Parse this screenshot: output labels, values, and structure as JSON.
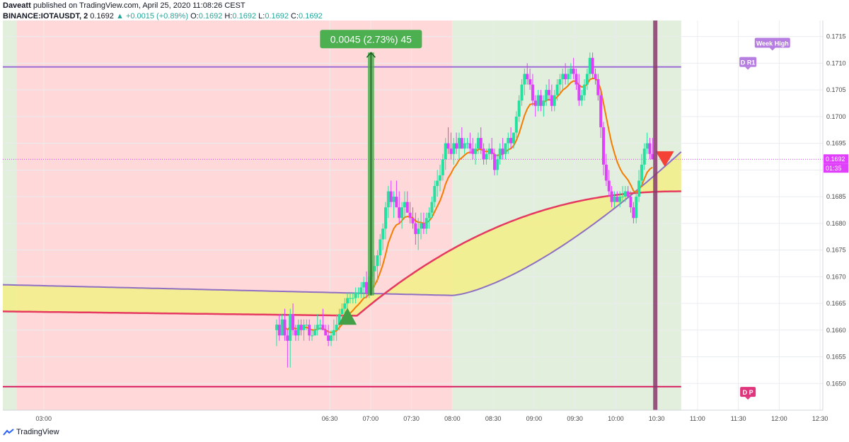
{
  "header": {
    "author": "Daveatt",
    "published_text": "published on TradingView.com, April 25, 2020 11:08:26 CEST",
    "symbol": "BINANCE:IOTAUSDT, 2",
    "last": "0.1692",
    "change": "+0.0015 (+0.89%)",
    "o_label": "O:",
    "o": "0.1692",
    "h_label": "H:",
    "h": "0.1692",
    "l_label": "L:",
    "l": "0.1692",
    "c_label": "C:",
    "c": "0.1692"
  },
  "footer": {
    "brand": "TradingView"
  },
  "colors": {
    "bull": "#26e0a0",
    "bear": "#e040fb",
    "bg_red": "#ffd9d9",
    "bg_green": "#e2efdc",
    "orange": "#f57c00",
    "red_ma": "#e53960",
    "purple_ma": "#8e6fc2",
    "fill_yellow": "#f3ee8c",
    "long_box": "#4caf50",
    "vline": "#883a6b",
    "price_label": "#e040fb"
  },
  "chart_data": {
    "type": "candlestick",
    "y_range": [
      0.1645,
      0.1718
    ],
    "y_ticks": [
      "0.1650",
      "0.1655",
      "0.1660",
      "0.1665",
      "0.1670",
      "0.1675",
      "0.1680",
      "0.1685",
      "0.1690",
      "0.1695",
      "0.1700",
      "0.1705",
      "0.1710",
      "0.1715"
    ],
    "x_range_minutes": [
      150,
      752
    ],
    "x_ticks": [
      {
        "label": "03:00",
        "t": 180
      },
      {
        "label": "06:30",
        "t": 390
      },
      {
        "label": "07:00",
        "t": 420
      },
      {
        "label": "07:30",
        "t": 450
      },
      {
        "label": "08:00",
        "t": 480
      },
      {
        "label": "08:30",
        "t": 510
      },
      {
        "label": "09:00",
        "t": 540
      },
      {
        "label": "09:30",
        "t": 570
      },
      {
        "label": "10:00",
        "t": 600
      },
      {
        "label": "10:30",
        "t": 630
      },
      {
        "label": "11:00",
        "t": 660
      },
      {
        "label": "11:30",
        "t": 690
      },
      {
        "label": "12:00",
        "t": 720
      },
      {
        "label": "12:30",
        "t": 750
      }
    ],
    "current_price": "0.1692",
    "countdown": "01:35",
    "measure_label": "0.0045 (2.73%) 45",
    "pivot_labels": [
      "Week High",
      "D R1",
      "D P"
    ],
    "levels": {
      "purple_high": 0.17093,
      "pink_low": 0.16494
    },
    "candles": [
      {
        "t": 351,
        "o": 0.166,
        "h": 0.1662,
        "l": 0.1657,
        "c": 0.1661
      },
      {
        "t": 353,
        "o": 0.1661,
        "h": 0.1663,
        "l": 0.1658,
        "c": 0.1659
      },
      {
        "t": 355,
        "o": 0.1659,
        "h": 0.1663,
        "l": 0.1659,
        "c": 0.1662
      },
      {
        "t": 357,
        "o": 0.1662,
        "h": 0.1664,
        "l": 0.1658,
        "c": 0.1659
      },
      {
        "t": 359,
        "o": 0.1659,
        "h": 0.166,
        "l": 0.1653,
        "c": 0.1658
      },
      {
        "t": 361,
        "o": 0.1658,
        "h": 0.1664,
        "l": 0.1653,
        "c": 0.1663
      },
      {
        "t": 363,
        "o": 0.1663,
        "h": 0.1665,
        "l": 0.1659,
        "c": 0.166
      },
      {
        "t": 365,
        "o": 0.166,
        "h": 0.1661,
        "l": 0.1658,
        "c": 0.1659
      },
      {
        "t": 367,
        "o": 0.1659,
        "h": 0.1662,
        "l": 0.1658,
        "c": 0.1661
      },
      {
        "t": 369,
        "o": 0.1661,
        "h": 0.1662,
        "l": 0.1659,
        "c": 0.166
      },
      {
        "t": 371,
        "o": 0.166,
        "h": 0.1662,
        "l": 0.1658,
        "c": 0.1661
      },
      {
        "t": 373,
        "o": 0.1661,
        "h": 0.1662,
        "l": 0.166,
        "c": 0.1661
      },
      {
        "t": 375,
        "o": 0.1661,
        "h": 0.1662,
        "l": 0.1658,
        "c": 0.1659
      },
      {
        "t": 377,
        "o": 0.1659,
        "h": 0.166,
        "l": 0.1658,
        "c": 0.1659
      },
      {
        "t": 379,
        "o": 0.1659,
        "h": 0.1661,
        "l": 0.1659,
        "c": 0.166
      },
      {
        "t": 381,
        "o": 0.166,
        "h": 0.1663,
        "l": 0.1659,
        "c": 0.1661
      },
      {
        "t": 383,
        "o": 0.1661,
        "h": 0.1662,
        "l": 0.166,
        "c": 0.1661
      },
      {
        "t": 385,
        "o": 0.1661,
        "h": 0.1664,
        "l": 0.166,
        "c": 0.166
      },
      {
        "t": 387,
        "o": 0.166,
        "h": 0.1661,
        "l": 0.1659,
        "c": 0.1659
      },
      {
        "t": 389,
        "o": 0.1659,
        "h": 0.1661,
        "l": 0.1657,
        "c": 0.1658
      },
      {
        "t": 391,
        "o": 0.1658,
        "h": 0.166,
        "l": 0.1657,
        "c": 0.1659
      },
      {
        "t": 393,
        "o": 0.1659,
        "h": 0.1662,
        "l": 0.1658,
        "c": 0.166
      },
      {
        "t": 395,
        "o": 0.166,
        "h": 0.1663,
        "l": 0.1658,
        "c": 0.1661
      },
      {
        "t": 397,
        "o": 0.1661,
        "h": 0.1664,
        "l": 0.166,
        "c": 0.1663
      },
      {
        "t": 399,
        "o": 0.1663,
        "h": 0.1665,
        "l": 0.1662,
        "c": 0.1664
      },
      {
        "t": 401,
        "o": 0.1664,
        "h": 0.1666,
        "l": 0.1663,
        "c": 0.1665
      },
      {
        "t": 403,
        "o": 0.1665,
        "h": 0.1667,
        "l": 0.1664,
        "c": 0.1666
      },
      {
        "t": 405,
        "o": 0.1666,
        "h": 0.1667,
        "l": 0.1665,
        "c": 0.1666
      },
      {
        "t": 407,
        "o": 0.1666,
        "h": 0.1667,
        "l": 0.1665,
        "c": 0.1666
      },
      {
        "t": 409,
        "o": 0.1666,
        "h": 0.1668,
        "l": 0.1665,
        "c": 0.1667
      },
      {
        "t": 411,
        "o": 0.1667,
        "h": 0.1668,
        "l": 0.1666,
        "c": 0.1667
      },
      {
        "t": 413,
        "o": 0.1667,
        "h": 0.1669,
        "l": 0.1666,
        "c": 0.1668
      },
      {
        "t": 415,
        "o": 0.1668,
        "h": 0.167,
        "l": 0.1666,
        "c": 0.1669
      },
      {
        "t": 417,
        "o": 0.1669,
        "h": 0.1671,
        "l": 0.1666,
        "c": 0.1667
      },
      {
        "t": 419,
        "o": 0.1667,
        "h": 0.1671,
        "l": 0.1666,
        "c": 0.167
      },
      {
        "t": 421,
        "o": 0.167,
        "h": 0.1673,
        "l": 0.1667,
        "c": 0.1671
      },
      {
        "t": 423,
        "o": 0.1671,
        "h": 0.1674,
        "l": 0.1668,
        "c": 0.1672
      },
      {
        "t": 425,
        "o": 0.1672,
        "h": 0.1675,
        "l": 0.1669,
        "c": 0.1674
      },
      {
        "t": 427,
        "o": 0.1674,
        "h": 0.1678,
        "l": 0.1672,
        "c": 0.1677
      },
      {
        "t": 429,
        "o": 0.1677,
        "h": 0.168,
        "l": 0.1675,
        "c": 0.1679
      },
      {
        "t": 431,
        "o": 0.1679,
        "h": 0.1684,
        "l": 0.1677,
        "c": 0.1683
      },
      {
        "t": 433,
        "o": 0.1683,
        "h": 0.1687,
        "l": 0.1681,
        "c": 0.1686
      },
      {
        "t": 435,
        "o": 0.1686,
        "h": 0.1688,
        "l": 0.1683,
        "c": 0.1684
      },
      {
        "t": 437,
        "o": 0.1684,
        "h": 0.1686,
        "l": 0.1681,
        "c": 0.1685
      },
      {
        "t": 439,
        "o": 0.1685,
        "h": 0.1688,
        "l": 0.1683,
        "c": 0.1683
      },
      {
        "t": 441,
        "o": 0.1683,
        "h": 0.1686,
        "l": 0.168,
        "c": 0.1681
      },
      {
        "t": 443,
        "o": 0.1681,
        "h": 0.1684,
        "l": 0.1679,
        "c": 0.1683
      },
      {
        "t": 445,
        "o": 0.1683,
        "h": 0.1686,
        "l": 0.1681,
        "c": 0.1684
      },
      {
        "t": 447,
        "o": 0.1684,
        "h": 0.1686,
        "l": 0.1682,
        "c": 0.1682
      },
      {
        "t": 449,
        "o": 0.1682,
        "h": 0.1684,
        "l": 0.168,
        "c": 0.1681
      },
      {
        "t": 451,
        "o": 0.1681,
        "h": 0.1683,
        "l": 0.1679,
        "c": 0.168
      },
      {
        "t": 453,
        "o": 0.168,
        "h": 0.1682,
        "l": 0.1676,
        "c": 0.1678
      },
      {
        "t": 455,
        "o": 0.1678,
        "h": 0.1681,
        "l": 0.1675,
        "c": 0.1679
      },
      {
        "t": 457,
        "o": 0.1679,
        "h": 0.1682,
        "l": 0.1677,
        "c": 0.168
      },
      {
        "t": 459,
        "o": 0.168,
        "h": 0.1682,
        "l": 0.1678,
        "c": 0.1679
      },
      {
        "t": 461,
        "o": 0.1679,
        "h": 0.1682,
        "l": 0.1678,
        "c": 0.1681
      },
      {
        "t": 463,
        "o": 0.1681,
        "h": 0.1683,
        "l": 0.1679,
        "c": 0.1682
      },
      {
        "t": 465,
        "o": 0.1682,
        "h": 0.1685,
        "l": 0.1681,
        "c": 0.1684
      },
      {
        "t": 467,
        "o": 0.1684,
        "h": 0.1688,
        "l": 0.1683,
        "c": 0.1687
      },
      {
        "t": 469,
        "o": 0.1687,
        "h": 0.169,
        "l": 0.1685,
        "c": 0.1688
      },
      {
        "t": 471,
        "o": 0.1688,
        "h": 0.1691,
        "l": 0.1686,
        "c": 0.1689
      },
      {
        "t": 473,
        "o": 0.1689,
        "h": 0.1693,
        "l": 0.1688,
        "c": 0.1692
      },
      {
        "t": 475,
        "o": 0.1692,
        "h": 0.1696,
        "l": 0.169,
        "c": 0.1695
      },
      {
        "t": 477,
        "o": 0.1695,
        "h": 0.1698,
        "l": 0.1693,
        "c": 0.1694
      },
      {
        "t": 479,
        "o": 0.1694,
        "h": 0.1697,
        "l": 0.1692,
        "c": 0.1693
      },
      {
        "t": 481,
        "o": 0.1693,
        "h": 0.1696,
        "l": 0.1691,
        "c": 0.1695
      },
      {
        "t": 483,
        "o": 0.1695,
        "h": 0.1697,
        "l": 0.1693,
        "c": 0.1694
      },
      {
        "t": 485,
        "o": 0.1694,
        "h": 0.1697,
        "l": 0.1692,
        "c": 0.1696
      },
      {
        "t": 487,
        "o": 0.1696,
        "h": 0.1698,
        "l": 0.1694,
        "c": 0.1694
      },
      {
        "t": 489,
        "o": 0.1694,
        "h": 0.1696,
        "l": 0.1693,
        "c": 0.1695
      },
      {
        "t": 491,
        "o": 0.1695,
        "h": 0.1696,
        "l": 0.1694,
        "c": 0.1695
      },
      {
        "t": 493,
        "o": 0.1695,
        "h": 0.1697,
        "l": 0.1693,
        "c": 0.1694
      },
      {
        "t": 495,
        "o": 0.1694,
        "h": 0.1696,
        "l": 0.1692,
        "c": 0.1693
      },
      {
        "t": 497,
        "o": 0.1693,
        "h": 0.1695,
        "l": 0.1691,
        "c": 0.1694
      },
      {
        "t": 499,
        "o": 0.1694,
        "h": 0.1697,
        "l": 0.1693,
        "c": 0.1696
      },
      {
        "t": 501,
        "o": 0.1696,
        "h": 0.1698,
        "l": 0.1693,
        "c": 0.1694
      },
      {
        "t": 503,
        "o": 0.1694,
        "h": 0.1695,
        "l": 0.1691,
        "c": 0.1692
      },
      {
        "t": 505,
        "o": 0.1692,
        "h": 0.1694,
        "l": 0.1691,
        "c": 0.1693
      },
      {
        "t": 507,
        "o": 0.1693,
        "h": 0.1695,
        "l": 0.1692,
        "c": 0.1694
      },
      {
        "t": 509,
        "o": 0.1694,
        "h": 0.1696,
        "l": 0.1692,
        "c": 0.1693
      },
      {
        "t": 511,
        "o": 0.1693,
        "h": 0.1694,
        "l": 0.1689,
        "c": 0.169
      },
      {
        "t": 513,
        "o": 0.169,
        "h": 0.1693,
        "l": 0.1689,
        "c": 0.1692
      },
      {
        "t": 515,
        "o": 0.1692,
        "h": 0.1695,
        "l": 0.1691,
        "c": 0.1694
      },
      {
        "t": 517,
        "o": 0.1694,
        "h": 0.1696,
        "l": 0.1692,
        "c": 0.1693
      },
      {
        "t": 519,
        "o": 0.1693,
        "h": 0.1695,
        "l": 0.1692,
        "c": 0.1695
      },
      {
        "t": 521,
        "o": 0.1695,
        "h": 0.1697,
        "l": 0.1693,
        "c": 0.1696
      },
      {
        "t": 523,
        "o": 0.1696,
        "h": 0.1698,
        "l": 0.1694,
        "c": 0.1695
      },
      {
        "t": 525,
        "o": 0.1695,
        "h": 0.1697,
        "l": 0.1694,
        "c": 0.1697
      },
      {
        "t": 527,
        "o": 0.1697,
        "h": 0.1701,
        "l": 0.1696,
        "c": 0.17
      },
      {
        "t": 529,
        "o": 0.17,
        "h": 0.1704,
        "l": 0.1699,
        "c": 0.1703
      },
      {
        "t": 531,
        "o": 0.1703,
        "h": 0.1707,
        "l": 0.1702,
        "c": 0.1706
      },
      {
        "t": 533,
        "o": 0.1706,
        "h": 0.1709,
        "l": 0.1704,
        "c": 0.1708
      },
      {
        "t": 535,
        "o": 0.1708,
        "h": 0.171,
        "l": 0.1706,
        "c": 0.1707
      },
      {
        "t": 537,
        "o": 0.1707,
        "h": 0.1709,
        "l": 0.1705,
        "c": 0.1706
      },
      {
        "t": 539,
        "o": 0.1706,
        "h": 0.1708,
        "l": 0.1702,
        "c": 0.1703
      },
      {
        "t": 541,
        "o": 0.1703,
        "h": 0.1704,
        "l": 0.17,
        "c": 0.1702
      },
      {
        "t": 543,
        "o": 0.1702,
        "h": 0.1705,
        "l": 0.1701,
        "c": 0.1704
      },
      {
        "t": 545,
        "o": 0.1704,
        "h": 0.1705,
        "l": 0.1701,
        "c": 0.1702
      },
      {
        "t": 547,
        "o": 0.1702,
        "h": 0.1704,
        "l": 0.17,
        "c": 0.1703
      },
      {
        "t": 549,
        "o": 0.1703,
        "h": 0.1706,
        "l": 0.1702,
        "c": 0.1705
      },
      {
        "t": 551,
        "o": 0.1705,
        "h": 0.1707,
        "l": 0.1703,
        "c": 0.1704
      },
      {
        "t": 553,
        "o": 0.1704,
        "h": 0.1706,
        "l": 0.1701,
        "c": 0.1702
      },
      {
        "t": 555,
        "o": 0.1702,
        "h": 0.1705,
        "l": 0.1701,
        "c": 0.1704
      },
      {
        "t": 557,
        "o": 0.1704,
        "h": 0.1707,
        "l": 0.1703,
        "c": 0.1706
      },
      {
        "t": 559,
        "o": 0.1706,
        "h": 0.1708,
        "l": 0.1704,
        "c": 0.1707
      },
      {
        "t": 561,
        "o": 0.1707,
        "h": 0.1709,
        "l": 0.1705,
        "c": 0.1708
      },
      {
        "t": 563,
        "o": 0.1708,
        "h": 0.171,
        "l": 0.1706,
        "c": 0.1707
      },
      {
        "t": 565,
        "o": 0.1707,
        "h": 0.1709,
        "l": 0.1706,
        "c": 0.1708
      },
      {
        "t": 567,
        "o": 0.1708,
        "h": 0.171,
        "l": 0.1707,
        "c": 0.1709
      },
      {
        "t": 569,
        "o": 0.1709,
        "h": 0.1711,
        "l": 0.1707,
        "c": 0.1708
      },
      {
        "t": 571,
        "o": 0.1708,
        "h": 0.1709,
        "l": 0.1705,
        "c": 0.1706
      },
      {
        "t": 573,
        "o": 0.1706,
        "h": 0.1708,
        "l": 0.1702,
        "c": 0.1703
      },
      {
        "t": 575,
        "o": 0.1703,
        "h": 0.1705,
        "l": 0.1702,
        "c": 0.1704
      },
      {
        "t": 577,
        "o": 0.1704,
        "h": 0.1707,
        "l": 0.1703,
        "c": 0.1706
      },
      {
        "t": 579,
        "o": 0.1706,
        "h": 0.1709,
        "l": 0.1705,
        "c": 0.1708
      },
      {
        "t": 581,
        "o": 0.1708,
        "h": 0.1712,
        "l": 0.1707,
        "c": 0.1711
      },
      {
        "t": 583,
        "o": 0.1711,
        "h": 0.1712,
        "l": 0.1707,
        "c": 0.1708
      },
      {
        "t": 585,
        "o": 0.1708,
        "h": 0.1709,
        "l": 0.1706,
        "c": 0.1707
      },
      {
        "t": 587,
        "o": 0.1707,
        "h": 0.1708,
        "l": 0.1703,
        "c": 0.1704
      },
      {
        "t": 589,
        "o": 0.1704,
        "h": 0.1705,
        "l": 0.1696,
        "c": 0.1698
      },
      {
        "t": 591,
        "o": 0.1698,
        "h": 0.1699,
        "l": 0.1689,
        "c": 0.1691
      },
      {
        "t": 593,
        "o": 0.1691,
        "h": 0.1693,
        "l": 0.1687,
        "c": 0.1688
      },
      {
        "t": 595,
        "o": 0.1688,
        "h": 0.169,
        "l": 0.1685,
        "c": 0.1686
      },
      {
        "t": 597,
        "o": 0.1686,
        "h": 0.1687,
        "l": 0.1683,
        "c": 0.1684
      },
      {
        "t": 599,
        "o": 0.1684,
        "h": 0.1686,
        "l": 0.1683,
        "c": 0.1685
      },
      {
        "t": 601,
        "o": 0.1685,
        "h": 0.1686,
        "l": 0.1684,
        "c": 0.1684
      },
      {
        "t": 603,
        "o": 0.1684,
        "h": 0.1686,
        "l": 0.1683,
        "c": 0.1685
      },
      {
        "t": 605,
        "o": 0.1685,
        "h": 0.1687,
        "l": 0.1684,
        "c": 0.1685
      },
      {
        "t": 607,
        "o": 0.1685,
        "h": 0.1687,
        "l": 0.1684,
        "c": 0.1686
      },
      {
        "t": 609,
        "o": 0.1686,
        "h": 0.1687,
        "l": 0.1685,
        "c": 0.1685
      },
      {
        "t": 611,
        "o": 0.1685,
        "h": 0.1686,
        "l": 0.1682,
        "c": 0.1683
      },
      {
        "t": 613,
        "o": 0.1683,
        "h": 0.1684,
        "l": 0.168,
        "c": 0.1681
      },
      {
        "t": 615,
        "o": 0.1681,
        "h": 0.1686,
        "l": 0.168,
        "c": 0.1685
      },
      {
        "t": 617,
        "o": 0.1685,
        "h": 0.169,
        "l": 0.1684,
        "c": 0.1688
      },
      {
        "t": 619,
        "o": 0.1688,
        "h": 0.1693,
        "l": 0.1687,
        "c": 0.1691
      },
      {
        "t": 621,
        "o": 0.1691,
        "h": 0.1695,
        "l": 0.169,
        "c": 0.1694
      },
      {
        "t": 623,
        "o": 0.1694,
        "h": 0.1697,
        "l": 0.1693,
        "c": 0.1695
      },
      {
        "t": 625,
        "o": 0.1695,
        "h": 0.1696,
        "l": 0.1692,
        "c": 0.1693
      },
      {
        "t": 627,
        "o": 0.1693,
        "h": 0.1696,
        "l": 0.1692,
        "c": 0.1692
      }
    ]
  }
}
